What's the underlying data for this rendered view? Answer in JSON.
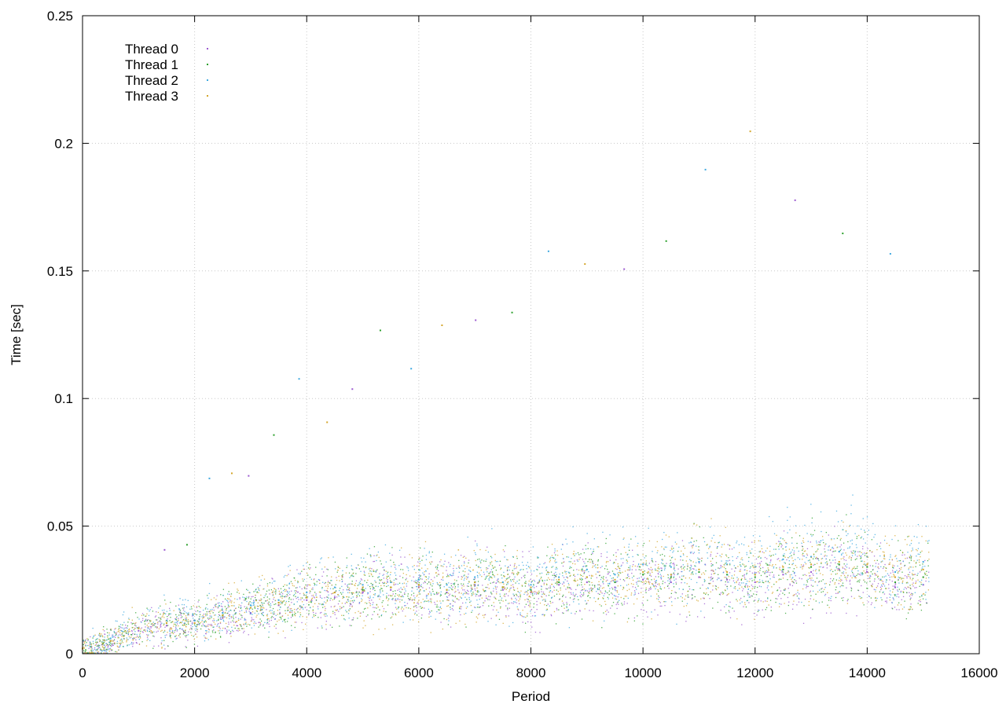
{
  "chart_data": {
    "type": "scatter",
    "title": "",
    "xlabel": "Period",
    "ylabel": "Time [sec]",
    "xlim": [
      0,
      16000
    ],
    "ylim": [
      0,
      0.25
    ],
    "x_ticks": [
      0,
      2000,
      4000,
      6000,
      8000,
      10000,
      12000,
      14000,
      16000
    ],
    "x_tick_labels": [
      "0",
      "2000",
      "4000",
      "6000",
      "8000",
      "10000",
      "12000",
      "14000",
      "16000"
    ],
    "y_ticks": [
      0,
      0.05,
      0.1,
      0.15,
      0.2,
      0.25
    ],
    "y_tick_labels": [
      "0",
      "0.05",
      "0.1",
      "0.15",
      "0.2",
      "0.25"
    ],
    "grid": true,
    "legend_position": "top-left",
    "marker": "dot",
    "series": [
      {
        "name": "Thread 0",
        "color": "#9b59d0",
        "x": [
          0,
          500,
          1000,
          1500,
          2000,
          2500,
          3000,
          3500,
          4000,
          4500,
          5000,
          5500,
          6000,
          6500,
          7000,
          7500,
          8000,
          8500,
          9000,
          9500,
          10000,
          10500,
          11000,
          11500,
          12000,
          12500,
          13000,
          13500,
          14000,
          14500,
          15000
        ],
        "y": [
          0.002,
          0.005,
          0.009,
          0.011,
          0.012,
          0.014,
          0.016,
          0.019,
          0.021,
          0.022,
          0.024,
          0.025,
          0.026,
          0.024,
          0.027,
          0.025,
          0.024,
          0.027,
          0.028,
          0.026,
          0.029,
          0.028,
          0.03,
          0.029,
          0.028,
          0.031,
          0.032,
          0.033,
          0.032,
          0.026,
          0.027
        ]
      },
      {
        "name": "Thread 1",
        "color": "#2ca02c",
        "x": [
          0,
          500,
          1000,
          1500,
          2000,
          2500,
          3000,
          3500,
          4000,
          4500,
          5000,
          5500,
          6000,
          6500,
          7000,
          7500,
          8000,
          8500,
          9000,
          9500,
          10000,
          10500,
          11000,
          11500,
          12000,
          12500,
          13000,
          13500,
          14000,
          14500,
          15000
        ],
        "y": [
          0.002,
          0.005,
          0.01,
          0.012,
          0.013,
          0.015,
          0.018,
          0.02,
          0.022,
          0.024,
          0.025,
          0.026,
          0.027,
          0.025,
          0.028,
          0.026,
          0.025,
          0.028,
          0.03,
          0.028,
          0.031,
          0.03,
          0.032,
          0.031,
          0.03,
          0.033,
          0.034,
          0.035,
          0.034,
          0.028,
          0.03
        ]
      },
      {
        "name": "Thread 2",
        "color": "#3fa9e0",
        "x": [
          0,
          500,
          1000,
          1500,
          2000,
          2500,
          3000,
          3500,
          4000,
          4500,
          5000,
          5500,
          6000,
          6500,
          7000,
          7500,
          8000,
          8500,
          9000,
          9500,
          10000,
          10500,
          11000,
          11500,
          12000,
          12500,
          13000,
          13500,
          14000,
          14500,
          15000
        ],
        "y": [
          0.002,
          0.006,
          0.01,
          0.013,
          0.013,
          0.016,
          0.019,
          0.021,
          0.024,
          0.026,
          0.027,
          0.028,
          0.029,
          0.027,
          0.03,
          0.028,
          0.027,
          0.03,
          0.033,
          0.031,
          0.035,
          0.034,
          0.036,
          0.035,
          0.034,
          0.037,
          0.038,
          0.04,
          0.038,
          0.032,
          0.036
        ]
      },
      {
        "name": "Thread 3",
        "color": "#d4a62a",
        "x": [
          0,
          500,
          1000,
          1500,
          2000,
          2500,
          3000,
          3500,
          4000,
          4500,
          5000,
          5500,
          6000,
          6500,
          7000,
          7500,
          8000,
          8500,
          9000,
          9500,
          10000,
          10500,
          11000,
          11500,
          12000,
          12500,
          13000,
          13500,
          14000,
          14500,
          15000
        ],
        "y": [
          0.002,
          0.005,
          0.01,
          0.012,
          0.012,
          0.015,
          0.018,
          0.02,
          0.022,
          0.024,
          0.026,
          0.026,
          0.027,
          0.025,
          0.028,
          0.026,
          0.026,
          0.029,
          0.03,
          0.029,
          0.032,
          0.031,
          0.033,
          0.032,
          0.031,
          0.034,
          0.035,
          0.036,
          0.035,
          0.03,
          0.033
        ]
      }
    ],
    "outliers": {
      "x": [
        1450,
        1850,
        2250,
        2650,
        2950,
        3400,
        3850,
        4350,
        4800,
        5300,
        5850,
        6400,
        7000,
        7650,
        8300,
        8950,
        9650,
        10400,
        11100,
        11900,
        12700,
        13550,
        14400
      ],
      "y": [
        0.041,
        0.043,
        0.069,
        0.071,
        0.07,
        0.086,
        0.108,
        0.091,
        0.104,
        0.127,
        0.112,
        0.129,
        0.131,
        0.134,
        0.158,
        0.153,
        0.151,
        0.162,
        0.19,
        0.205,
        0.178,
        0.165,
        0.157
      ]
    }
  }
}
